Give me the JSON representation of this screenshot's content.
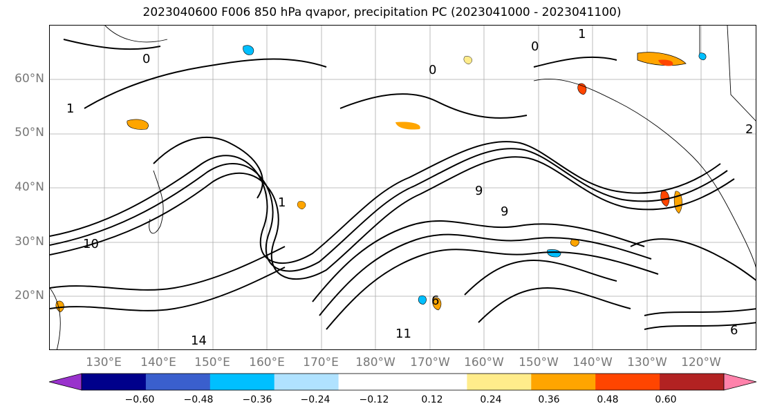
{
  "title": "2023040600 F006 850 hPa qvapor, precipitation PC (2023041000 - 2023041100)",
  "map": {
    "projection": "plate-carree",
    "lat_labels": [
      "60°N",
      "50°N",
      "40°N",
      "30°N",
      "20°N"
    ],
    "lon_labels": [
      "130°E",
      "140°E",
      "150°E",
      "160°E",
      "170°E",
      "180°W",
      "170°W",
      "160°W",
      "150°W",
      "140°W",
      "130°W",
      "120°W"
    ],
    "contour_labels": [
      "0",
      "0",
      "0",
      "1",
      "1",
      "1",
      "9",
      "9",
      "10",
      "11",
      "14",
      "6",
      "6",
      "2"
    ],
    "gridlines": true,
    "coastline_color": "#000000",
    "contour_color": "#000000"
  },
  "colorbar": {
    "orientation": "horizontal",
    "extend": "both",
    "colors": [
      "#9932cc",
      "#00008b",
      "#3a5fcd",
      "#00bfff",
      "#b0e2ff",
      "#ffffff",
      "#ffffff",
      "#ffec8b",
      "#ffa500",
      "#ff4500",
      "#b22222",
      "#ff82ab"
    ],
    "tick_labels": [
      "−0.60",
      "−0.48",
      "−0.36",
      "−0.24",
      "−0.12",
      "0.12",
      "0.24",
      "0.36",
      "0.48",
      "0.60"
    ]
  }
}
